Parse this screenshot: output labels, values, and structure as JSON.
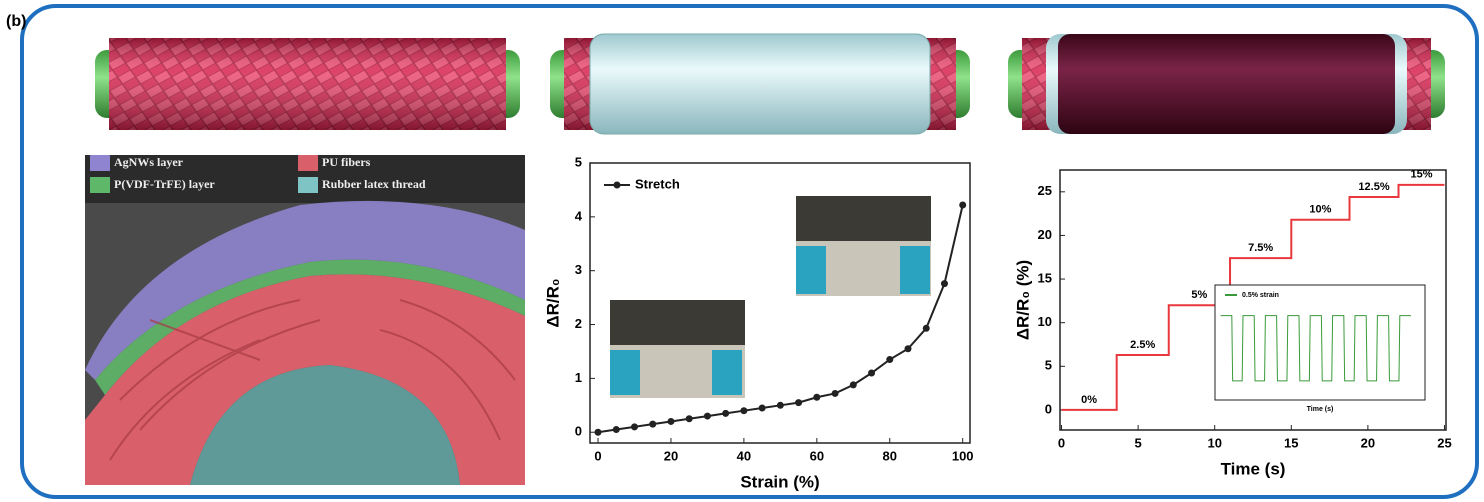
{
  "panel_label": "(b)",
  "sem_legend": [
    {
      "label": "AgNWs layer",
      "color": "#8f84cf"
    },
    {
      "label": "P(VDF-TrFE) layer",
      "color": "#5fb86a"
    },
    {
      "label": "PU fibers",
      "color": "#d9606a"
    },
    {
      "label": "Rubber latex thread",
      "color": "#7fc4c4"
    }
  ],
  "chart_data": [
    {
      "type": "line",
      "xlabel": "Strain (%)",
      "ylabel": "ΔR/R₀",
      "x": [
        0,
        5,
        10,
        15,
        20,
        25,
        30,
        35,
        40,
        45,
        50,
        55,
        60,
        65,
        70,
        75,
        80,
        85,
        90,
        95,
        100
      ],
      "series": [
        {
          "name": "Stretch",
          "color": "#222222",
          "values": [
            0,
            0.05,
            0.1,
            0.15,
            0.2,
            0.25,
            0.3,
            0.35,
            0.4,
            0.45,
            0.5,
            0.55,
            0.65,
            0.72,
            0.88,
            1.1,
            1.35,
            1.55,
            1.93,
            2.76,
            4.22
          ]
        }
      ],
      "markers": true,
      "legend": "upper left",
      "xlim": [
        -2.2,
        102
      ],
      "ylim": [
        -0.2,
        5
      ],
      "xticks": [
        0,
        20,
        40,
        60,
        80,
        100
      ],
      "yticks": [
        0,
        1,
        2,
        3,
        4,
        5
      ]
    },
    {
      "type": "line",
      "xlabel": "Time (s)",
      "ylabel": "ΔR/R₀ (%)",
      "x": [
        0,
        3.6,
        3.6,
        7,
        7,
        11,
        11,
        15,
        15,
        18.8,
        18.8,
        22,
        22,
        25
      ],
      "series": [
        {
          "name": null,
          "color": "#e8383d",
          "values": [
            0,
            0,
            6.3,
            6.3,
            12,
            12,
            17.4,
            17.4,
            21.8,
            21.8,
            24.4,
            24.4,
            25.8,
            25.8
          ]
        }
      ],
      "annotations": [
        "0%",
        "2.5%",
        "5%",
        "7.5%",
        "10%",
        "12.5%",
        "15%"
      ],
      "xlim": [
        -0.1,
        25.1
      ],
      "ylim": [
        -2.3,
        27.5
      ],
      "xticks": [
        0,
        5,
        10,
        15,
        20,
        25
      ],
      "yticks": [
        0,
        5,
        10,
        15,
        20,
        25
      ]
    },
    {
      "type": "line",
      "xlabel": "Time (s)",
      "x": [
        2,
        6,
        6.3,
        9.7,
        10,
        14,
        14.3,
        17.7,
        18,
        22,
        22.3,
        25.7,
        26,
        30,
        30.3,
        33.7,
        34,
        38,
        38.3,
        41.7,
        42,
        46,
        46.3,
        49.7,
        50,
        54,
        54.3,
        57.7,
        58,
        62,
        62.3,
        65.7,
        66,
        70
      ],
      "series": [
        {
          "name": "0.5% strain",
          "color": "#3a9a3a",
          "values": [
            1,
            1,
            0.15,
            0.15,
            1,
            1,
            0.15,
            0.15,
            1,
            1,
            0.15,
            0.15,
            1,
            1,
            0.15,
            0.15,
            1,
            1,
            0.15,
            0.15,
            1,
            1,
            0.15,
            0.15,
            1,
            1,
            0.15,
            0.15,
            1,
            1,
            0.15,
            0.15,
            1,
            1
          ]
        }
      ],
      "legend": "upper left",
      "xlim": [
        0,
        75
      ],
      "ylim": [
        -0.1,
        1.4
      ]
    }
  ]
}
